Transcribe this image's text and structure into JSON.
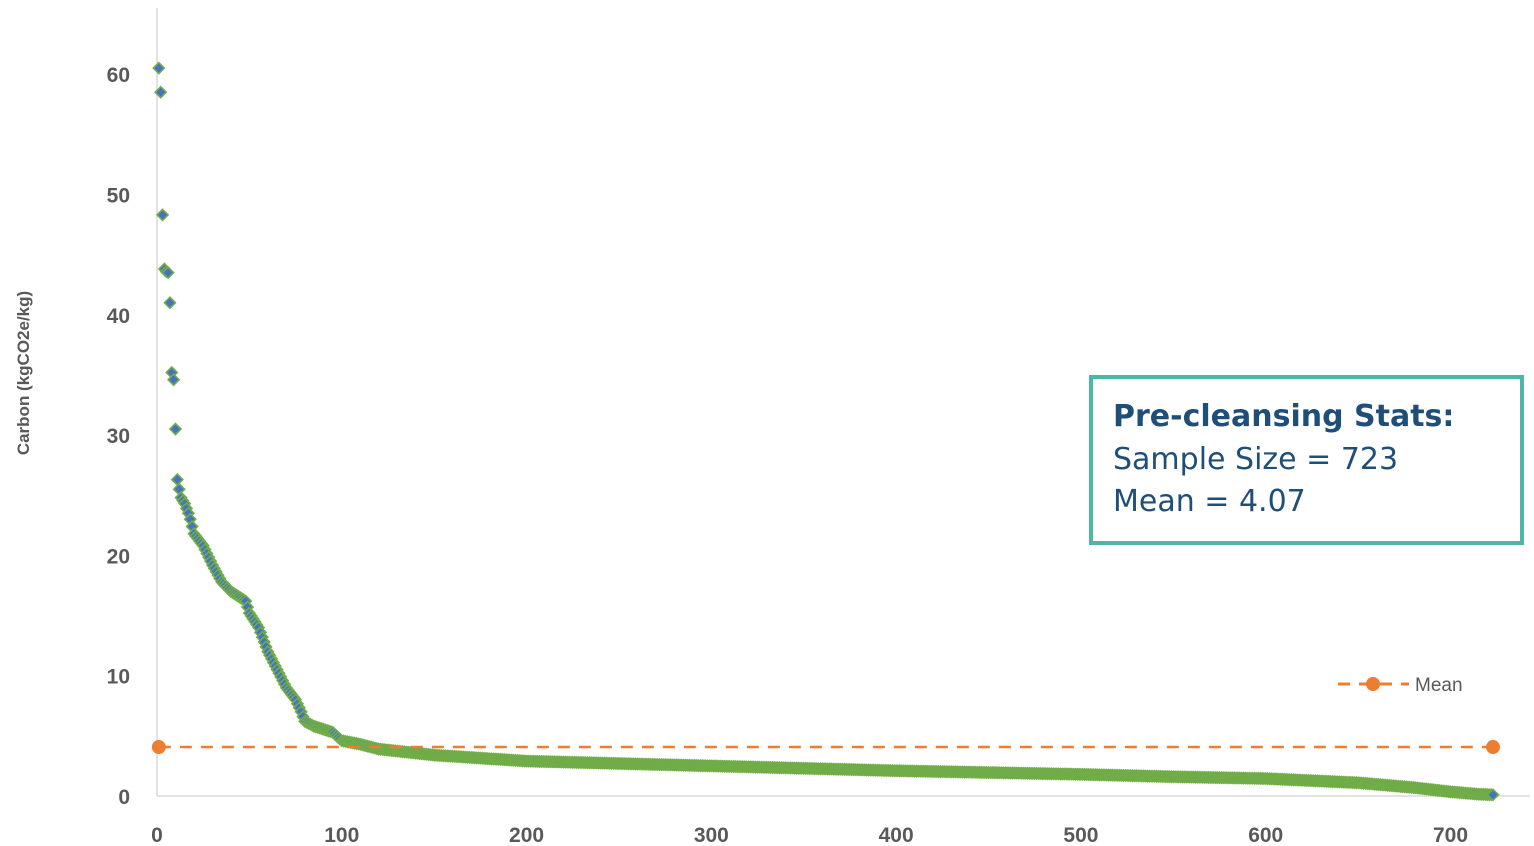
{
  "chart_data": {
    "type": "scatter",
    "title": "",
    "xlabel": "",
    "ylabel": "Carbon (kgCO2e/kg)",
    "xlim": [
      0,
      723
    ],
    "ylim": [
      0,
      65
    ],
    "xticks": [
      0,
      100,
      200,
      300,
      400,
      500,
      600,
      700
    ],
    "yticks": [
      0,
      10,
      20,
      30,
      40,
      50,
      60
    ],
    "grid": false,
    "legend_position": "bottom-right",
    "series": [
      {
        "name": "",
        "marker": "diamond",
        "fill_color": "#4472c4",
        "edge_color": "#70ad47",
        "profile": [
          [
            1,
            60.5
          ],
          [
            2,
            58.5
          ],
          [
            3,
            48.3
          ],
          [
            4,
            43.8
          ],
          [
            5,
            43.6
          ],
          [
            6,
            43.5
          ],
          [
            7,
            41.0
          ],
          [
            8,
            35.2
          ],
          [
            9,
            34.6
          ],
          [
            10,
            30.5
          ],
          [
            11,
            26.3
          ],
          [
            12,
            25.5
          ],
          [
            13,
            24.8
          ],
          [
            15,
            24.3
          ],
          [
            17,
            23.5
          ],
          [
            18,
            23.0
          ],
          [
            20,
            21.8
          ],
          [
            25,
            20.8
          ],
          [
            30,
            19.2
          ],
          [
            35,
            17.8
          ],
          [
            40,
            17.0
          ],
          [
            45,
            16.5
          ],
          [
            48,
            16.2
          ],
          [
            50,
            15.2
          ],
          [
            55,
            14.0
          ],
          [
            60,
            12.0
          ],
          [
            65,
            10.5
          ],
          [
            70,
            9.0
          ],
          [
            75,
            8.0
          ],
          [
            78,
            7.0
          ],
          [
            80,
            6.2
          ],
          [
            85,
            5.8
          ],
          [
            95,
            5.3
          ],
          [
            100,
            4.6
          ],
          [
            110,
            4.3
          ],
          [
            120,
            3.9
          ],
          [
            150,
            3.4
          ],
          [
            200,
            2.9
          ],
          [
            300,
            2.5
          ],
          [
            400,
            2.1
          ],
          [
            500,
            1.8
          ],
          [
            550,
            1.6
          ],
          [
            600,
            1.45
          ],
          [
            650,
            1.1
          ],
          [
            680,
            0.7
          ],
          [
            700,
            0.35
          ],
          [
            715,
            0.15
          ],
          [
            723,
            0.1
          ]
        ]
      },
      {
        "name": "Mean",
        "line_style": "dashed",
        "marker": "circle",
        "color": "#ed7d31",
        "x": [
          1,
          723
        ],
        "y": [
          4.07,
          4.07
        ]
      }
    ]
  },
  "stats_box": {
    "title": "Pre-cleansing Stats:",
    "sample_size": "Sample Size = 723",
    "mean": "Mean = 4.07"
  }
}
